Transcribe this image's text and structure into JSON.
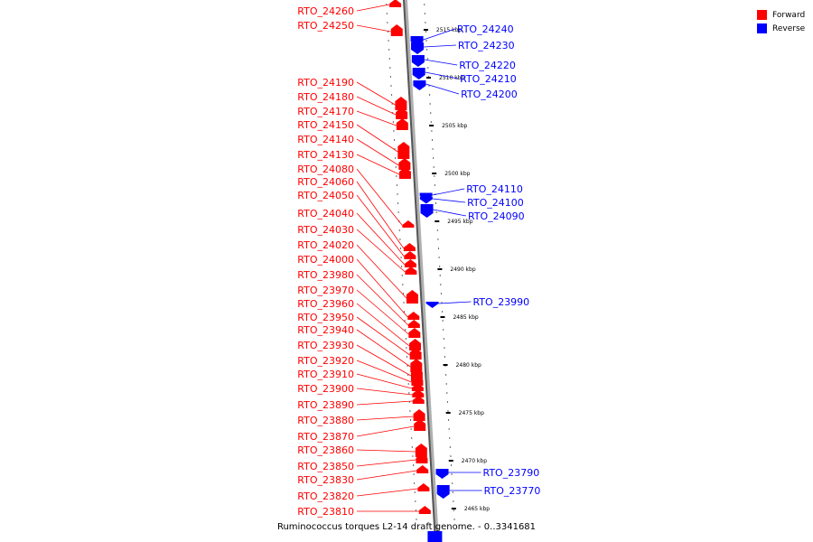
{
  "legend": {
    "forward_label": "Forward",
    "reverse_label": "Reverse",
    "forward_color": "#ff0000",
    "reverse_color": "#0000ff"
  },
  "caption": "Ruminococcus torques L2-14 draft genome. - 0..3341681",
  "scale_labels": [
    "2515 kbp",
    "2510 kbp",
    "2505 kbp",
    "2500 kbp",
    "2495 kbp",
    "2490 kbp",
    "2485 kbp",
    "2480 kbp",
    "2475 kbp",
    "2470 kbp",
    "2465 kbp"
  ],
  "forward_genes": [
    "RTO_24260",
    "RTO_24250",
    "RTO_24190",
    "RTO_24180",
    "RTO_24170",
    "RTO_24150",
    "RTO_24140",
    "RTO_24130",
    "RTO_24080",
    "RTO_24060",
    "RTO_24050",
    "RTO_24040",
    "RTO_24030",
    "RTO_24020",
    "RTO_24000",
    "RTO_23980",
    "RTO_23970",
    "RTO_23960",
    "RTO_23950",
    "RTO_23940",
    "RTO_23930",
    "RTO_23920",
    "RTO_23910",
    "RTO_23900",
    "RTO_23890",
    "RTO_23880",
    "RTO_23870",
    "RTO_23860",
    "RTO_23850",
    "RTO_23830",
    "RTO_23820",
    "RTO_23810"
  ],
  "reverse_genes": [
    "RTO_24240",
    "RTO_24230",
    "RTO_24220",
    "RTO_24210",
    "RTO_24200",
    "RTO_24110",
    "RTO_24100",
    "RTO_24090",
    "RTO_23990",
    "RTO_23790",
    "RTO_23770"
  ]
}
